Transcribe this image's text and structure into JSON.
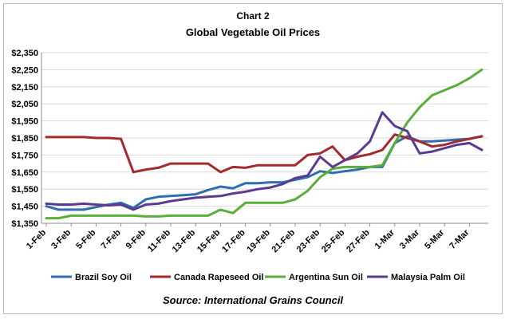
{
  "header": {
    "chart_number": "Chart 2",
    "title": "Global Vegetable Oil Prices"
  },
  "footer": {
    "source": "Source: International Grains Council"
  },
  "colors": {
    "brazil": "#2f6fb0",
    "canada": "#a32a2e",
    "argentina": "#5aae3c",
    "malaysia": "#5b3a8f",
    "grid": "#d9d9d9",
    "axis": "#8c8c8c"
  },
  "chart_data": {
    "type": "line",
    "title": "Global Vegetable Oil Prices",
    "xlabel": "",
    "ylabel": "",
    "ylim": [
      1350,
      2350
    ],
    "y_ticks": [
      "$1,350",
      "$1,450",
      "$1,550",
      "$1,650",
      "$1,750",
      "$1,850",
      "$1,950",
      "$2,050",
      "$2,150",
      "$2,250",
      "$2,350"
    ],
    "x_tick_labels": [
      "1-Feb",
      "3-Feb",
      "5-Feb",
      "7-Feb",
      "9-Feb",
      "11-Feb",
      "13-Feb",
      "15-Feb",
      "17-Feb",
      "19-Feb",
      "21-Feb",
      "23-Feb",
      "25-Feb",
      "27-Feb",
      "1-Mar",
      "3-Mar",
      "5-Mar",
      "7-Mar"
    ],
    "grid": true,
    "legend_position": "bottom",
    "x_range": [
      1,
      36
    ],
    "series": [
      {
        "name": "Brazil Soy Oil",
        "color_key": "brazil",
        "points": [
          [
            1,
            1450
          ],
          [
            2,
            1430
          ],
          [
            3,
            1430
          ],
          [
            4,
            1430
          ],
          [
            5,
            1445
          ],
          [
            6,
            1460
          ],
          [
            7,
            1470
          ],
          [
            8,
            1440
          ],
          [
            9,
            1490
          ],
          [
            10,
            1505
          ],
          [
            11,
            1510
          ],
          [
            12,
            1515
          ],
          [
            13,
            1520
          ],
          [
            14,
            1545
          ],
          [
            15,
            1565
          ],
          [
            16,
            1555
          ],
          [
            17,
            1585
          ],
          [
            18,
            1585
          ],
          [
            19,
            1590
          ],
          [
            20,
            1590
          ],
          [
            21,
            1605
          ],
          [
            22,
            1620
          ],
          [
            23,
            1655
          ],
          [
            24,
            1645
          ],
          [
            25,
            1655
          ],
          [
            26,
            1665
          ],
          [
            27,
            1680
          ],
          [
            28,
            1680
          ],
          [
            29,
            1820
          ],
          [
            30,
            1860
          ],
          [
            31,
            1830
          ],
          [
            32,
            1830
          ],
          [
            33,
            1835
          ],
          [
            34,
            1840
          ],
          [
            35,
            1845
          ],
          [
            36,
            1860
          ]
        ]
      },
      {
        "name": "Canada Rapeseed Oil",
        "color_key": "canada",
        "points": [
          [
            1,
            1855
          ],
          [
            2,
            1855
          ],
          [
            3,
            1855
          ],
          [
            4,
            1855
          ],
          [
            5,
            1850
          ],
          [
            6,
            1850
          ],
          [
            7,
            1845
          ],
          [
            8,
            1650
          ],
          [
            9,
            1665
          ],
          [
            10,
            1675
          ],
          [
            11,
            1700
          ],
          [
            12,
            1700
          ],
          [
            13,
            1700
          ],
          [
            14,
            1700
          ],
          [
            15,
            1650
          ],
          [
            16,
            1680
          ],
          [
            17,
            1675
          ],
          [
            18,
            1690
          ],
          [
            19,
            1690
          ],
          [
            20,
            1690
          ],
          [
            21,
            1690
          ],
          [
            22,
            1750
          ],
          [
            23,
            1760
          ],
          [
            24,
            1800
          ],
          [
            25,
            1720
          ],
          [
            26,
            1740
          ],
          [
            27,
            1755
          ],
          [
            28,
            1780
          ],
          [
            29,
            1870
          ],
          [
            30,
            1850
          ],
          [
            31,
            1830
          ],
          [
            32,
            1800
          ],
          [
            33,
            1810
          ],
          [
            34,
            1830
          ],
          [
            35,
            1845
          ],
          [
            36,
            1860
          ]
        ]
      },
      {
        "name": "Argentina Sun Oil",
        "color_key": "argentina",
        "points": [
          [
            1,
            1380
          ],
          [
            2,
            1380
          ],
          [
            3,
            1395
          ],
          [
            4,
            1395
          ],
          [
            5,
            1395
          ],
          [
            6,
            1395
          ],
          [
            7,
            1395
          ],
          [
            8,
            1395
          ],
          [
            9,
            1390
          ],
          [
            10,
            1390
          ],
          [
            11,
            1395
          ],
          [
            12,
            1395
          ],
          [
            13,
            1395
          ],
          [
            14,
            1395
          ],
          [
            15,
            1430
          ],
          [
            16,
            1410
          ],
          [
            17,
            1470
          ],
          [
            18,
            1470
          ],
          [
            19,
            1470
          ],
          [
            20,
            1470
          ],
          [
            21,
            1490
          ],
          [
            22,
            1540
          ],
          [
            23,
            1620
          ],
          [
            24,
            1670
          ],
          [
            25,
            1680
          ],
          [
            26,
            1680
          ],
          [
            27,
            1680
          ],
          [
            28,
            1690
          ],
          [
            29,
            1820
          ],
          [
            30,
            1940
          ],
          [
            31,
            2030
          ],
          [
            32,
            2100
          ],
          [
            33,
            2130
          ],
          [
            34,
            2160
          ],
          [
            35,
            2200
          ],
          [
            36,
            2250
          ]
        ]
      },
      {
        "name": "Malaysia Palm Oil",
        "color_key": "malaysia",
        "points": [
          [
            1,
            1465
          ],
          [
            2,
            1460
          ],
          [
            3,
            1460
          ],
          [
            4,
            1465
          ],
          [
            5,
            1460
          ],
          [
            6,
            1455
          ],
          [
            7,
            1460
          ],
          [
            8,
            1430
          ],
          [
            9,
            1460
          ],
          [
            10,
            1465
          ],
          [
            11,
            1480
          ],
          [
            12,
            1490
          ],
          [
            13,
            1500
          ],
          [
            14,
            1505
          ],
          [
            15,
            1510
          ],
          [
            16,
            1525
          ],
          [
            17,
            1535
          ],
          [
            18,
            1550
          ],
          [
            19,
            1560
          ],
          [
            20,
            1580
          ],
          [
            21,
            1615
          ],
          [
            22,
            1630
          ],
          [
            23,
            1740
          ],
          [
            24,
            1680
          ],
          [
            25,
            1720
          ],
          [
            26,
            1760
          ],
          [
            27,
            1830
          ],
          [
            28,
            2000
          ],
          [
            29,
            1920
          ],
          [
            30,
            1890
          ],
          [
            31,
            1760
          ],
          [
            32,
            1770
          ],
          [
            33,
            1790
          ],
          [
            34,
            1810
          ],
          [
            35,
            1820
          ],
          [
            36,
            1780
          ]
        ]
      }
    ]
  }
}
